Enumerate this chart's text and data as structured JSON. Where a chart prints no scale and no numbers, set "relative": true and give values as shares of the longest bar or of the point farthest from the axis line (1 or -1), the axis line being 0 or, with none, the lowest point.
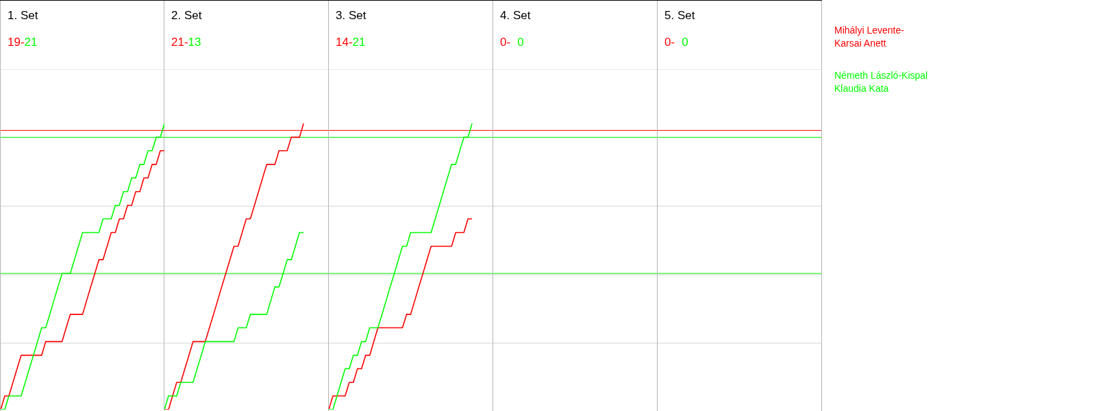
{
  "chart_data": [
    {
      "type": "line",
      "title": "1. Set",
      "annotations": [
        "19-",
        "21"
      ],
      "relative": true,
      "grid": "y",
      "categories": [
        null,
        null,
        null,
        null,
        null,
        null,
        null,
        null,
        null,
        null,
        null,
        null,
        null,
        null,
        null,
        null,
        null,
        null,
        null,
        null,
        null,
        null,
        null,
        null,
        null,
        null,
        null,
        null,
        null,
        null,
        null,
        null,
        null,
        null,
        null,
        null,
        null,
        null,
        null,
        null,
        null
      ],
      "series": [
        {
          "color": "#ff0000",
          "values": [
            0,
            0.048,
            0.048,
            0.095,
            0.143,
            0.19,
            0.19,
            0.19,
            0.19,
            0.19,
            0.19,
            0.238,
            0.238,
            0.238,
            0.238,
            0.238,
            0.286,
            0.333,
            0.333,
            0.333,
            0.333,
            0.381,
            0.429,
            0.476,
            0.524,
            0.524,
            0.571,
            0.619,
            0.619,
            0.667,
            0.667,
            0.714,
            0.714,
            0.762,
            0.762,
            0.81,
            0.81,
            0.857,
            0.857,
            0.905,
            0.905
          ]
        },
        {
          "color": "#00ff00",
          "values": [
            0,
            0,
            0.048,
            0.048,
            0.048,
            0.048,
            0.095,
            0.143,
            0.19,
            0.238,
            0.286,
            0.286,
            0.333,
            0.381,
            0.429,
            0.476,
            0.476,
            0.476,
            0.524,
            0.571,
            0.619,
            0.619,
            0.619,
            0.619,
            0.619,
            0.667,
            0.667,
            0.667,
            0.714,
            0.714,
            0.762,
            0.762,
            0.81,
            0.81,
            0.857,
            0.857,
            0.905,
            0.905,
            0.952,
            0.952,
            1
          ]
        }
      ],
      "ref_lines": [
        {
          "axis": "y",
          "value": 0.976,
          "color": "#ff0000"
        },
        {
          "axis": "y",
          "value": 0.952,
          "color": "#00ff00"
        },
        {
          "axis": "y",
          "value": 0.476,
          "color": "#00ff00"
        }
      ]
    },
    {
      "type": "line",
      "title": "2. Set",
      "annotations": [
        "21-",
        "13"
      ],
      "relative": true,
      "grid": "y",
      "categories": [
        null,
        null,
        null,
        null,
        null,
        null,
        null,
        null,
        null,
        null,
        null,
        null,
        null,
        null,
        null,
        null,
        null,
        null,
        null,
        null,
        null,
        null,
        null,
        null,
        null,
        null,
        null,
        null,
        null,
        null,
        null,
        null,
        null,
        null,
        null,
        null,
        null,
        null,
        null,
        null,
        null
      ],
      "series": [
        {
          "color": "#ff0000",
          "values": [
            0,
            0,
            0.048,
            0.095,
            0.095,
            0.143,
            0.19,
            0.238,
            0.238,
            0.238,
            0.238,
            0.286,
            0.333,
            0.381,
            0.429,
            0.476,
            0.524,
            0.571,
            0.571,
            0.619,
            0.667,
            0.667,
            0.714,
            0.762,
            0.81,
            0.857,
            0.857,
            0.857,
            0.905,
            0.905,
            0.905,
            0.952,
            0.952,
            0.952,
            1,
            null,
            null,
            null,
            null,
            null,
            null
          ]
        },
        {
          "color": "#00ff00",
          "values": [
            0,
            0.048,
            0.048,
            0.048,
            0.095,
            0.095,
            0.095,
            0.095,
            0.143,
            0.19,
            0.238,
            0.238,
            0.238,
            0.238,
            0.238,
            0.238,
            0.238,
            0.238,
            0.286,
            0.286,
            0.286,
            0.333,
            0.333,
            0.333,
            0.333,
            0.333,
            0.381,
            0.429,
            0.429,
            0.476,
            0.524,
            0.524,
            0.571,
            0.619,
            0.619,
            null,
            null,
            null,
            null,
            null,
            null
          ]
        }
      ],
      "ref_lines": [
        {
          "axis": "y",
          "value": 0.976,
          "color": "#ff0000"
        },
        {
          "axis": "y",
          "value": 0.952,
          "color": "#00ff00"
        },
        {
          "axis": "y",
          "value": 0.476,
          "color": "#00ff00"
        }
      ]
    },
    {
      "type": "line",
      "title": "3. Set",
      "annotations": [
        "14-",
        "21"
      ],
      "relative": true,
      "grid": "y",
      "legend": "right",
      "categories": [
        null,
        null,
        null,
        null,
        null,
        null,
        null,
        null,
        null,
        null,
        null,
        null,
        null,
        null,
        null,
        null,
        null,
        null,
        null,
        null,
        null,
        null,
        null,
        null,
        null,
        null,
        null,
        null,
        null,
        null,
        null,
        null,
        null,
        null,
        null,
        null,
        null,
        null,
        null,
        null,
        null
      ],
      "series": [
        {
          "name": "Mihályi Levente-Karsai Anett",
          "color": "#ff0000",
          "values": [
            0,
            0.048,
            0.048,
            0.048,
            0.048,
            0.095,
            0.095,
            0.143,
            0.143,
            0.19,
            0.19,
            0.238,
            0.286,
            0.286,
            0.286,
            0.286,
            0.286,
            0.286,
            0.286,
            0.333,
            0.333,
            0.381,
            0.429,
            0.476,
            0.524,
            0.571,
            0.571,
            0.571,
            0.571,
            0.571,
            0.571,
            0.619,
            0.619,
            0.619,
            0.667,
            0.667,
            null,
            null,
            null,
            null,
            null
          ]
        },
        {
          "name": "Németh László-Kispal Klaudia Kata",
          "color": "#00ff00",
          "values": [
            0,
            0,
            0.048,
            0.095,
            0.143,
            0.143,
            0.19,
            0.19,
            0.238,
            0.238,
            0.286,
            0.286,
            0.286,
            0.333,
            0.381,
            0.429,
            0.476,
            0.524,
            0.571,
            0.571,
            0.619,
            0.619,
            0.619,
            0.619,
            0.619,
            0.619,
            0.667,
            0.714,
            0.762,
            0.81,
            0.857,
            0.857,
            0.905,
            0.952,
            0.952,
            1,
            null,
            null,
            null,
            null,
            null
          ]
        }
      ],
      "ref_lines": [
        {
          "axis": "y",
          "value": 0.976,
          "color": "#ff0000"
        },
        {
          "axis": "y",
          "value": 0.952,
          "color": "#00ff00"
        },
        {
          "axis": "y",
          "value": 0.476,
          "color": "#00ff00"
        }
      ]
    },
    {
      "type": "other",
      "title": "4. Set",
      "annotations": [
        "0-",
        "0"
      ]
    },
    {
      "type": "other",
      "title": "5. Set",
      "annotations": [
        "0-",
        "0"
      ]
    }
  ]
}
